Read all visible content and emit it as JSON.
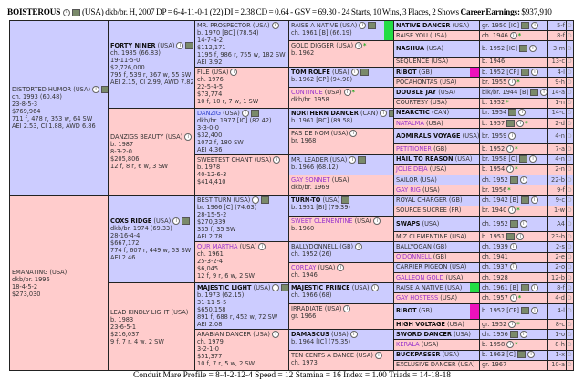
{
  "header": {
    "horse_name": "BOISTEROUS",
    "details": "(USA) dkb/br. H, 2007 DP = 6-4-11-0-1 (22) DI = 2.38   CD = 0.64 - GSV = 69.30 - 24 Starts, 10 Wins, 3 Places, 2 Shows",
    "earnings_label": "Career Earnings:",
    "earnings": "$937,910"
  },
  "colors": {
    "male_bg": "#ccccff",
    "female_bg": "#ffcccc",
    "swatch_green": "#22dd44",
    "swatch_magenta": "#ee11bb"
  },
  "gen1": [
    {
      "name": "DISTORTED HUMOR",
      "country": "(USA)",
      "sex": "m",
      "style": "",
      "icons": [
        "info",
        "book"
      ],
      "lines": [
        "ch. 1993 (60.48)",
        "23-8-5-3",
        "$769,964",
        "711 f, 478 r, 353 w, 64 SW",
        "AEI 2.53, CI 1.88, AWD 6.86"
      ]
    },
    {
      "name": "EMANATING",
      "country": "(USA)",
      "sex": "f",
      "style": "",
      "icons": [],
      "lines": [
        "dkb/br. 1996",
        "18-4-5-2",
        "$273,030"
      ]
    }
  ],
  "gen2": [
    {
      "name": "FORTY NINER",
      "country": "(USA)",
      "sex": "m",
      "style": "bold",
      "icons": [
        "info",
        "book"
      ],
      "lines": [
        "ch. 1985 (66.83)",
        "19-11-5-0",
        "$2,726,000",
        "795 f, 539 r, 367 w, 55 SW",
        "AEI 2.15, CI 2.99, AWD 7.82"
      ]
    },
    {
      "name": "DANZIGS BEAUTY",
      "country": "(USA)",
      "sex": "f",
      "style": "",
      "icons": [
        "info"
      ],
      "lines": [
        "b. 1987",
        "8-3-2-0",
        "$205,806",
        "12 f, 8 r, 6 w, 3 SW"
      ]
    },
    {
      "name": "COXS RIDGE",
      "country": "(USA)",
      "sex": "m",
      "style": "bold",
      "icons": [
        "info",
        "book"
      ],
      "lines": [
        "dkb/br. 1974 (69.33)",
        "28-16-4-4",
        "$667,172",
        "774 f, 607 r, 449 w, 53 SW",
        "AEI 2.46"
      ]
    },
    {
      "name": "LEAD KINDLY LIGHT",
      "country": "(USA)",
      "sex": "f",
      "style": "",
      "icons": [],
      "lines": [
        "b. 1983",
        "23-6-5-1",
        "$216,037",
        "9 f, 7 r, 4 w, 2 SW"
      ]
    }
  ],
  "gen3": [
    {
      "name": "MR. PROSPECTOR",
      "country": "(USA)",
      "sex": "m",
      "style": "",
      "icons": [
        "info"
      ],
      "lines": [
        "b. 1970 [BC] (78.54)",
        "14-7-4-2",
        "$112,171",
        "1195 f, 986 r, 755 w, 182 SW",
        "AEI 3.92"
      ]
    },
    {
      "name": "FILE",
      "country": "(USA)",
      "sex": "f",
      "style": "",
      "icons": [
        "info"
      ],
      "lines": [
        "ch. 1976",
        "22-5-4-5",
        "$73,774",
        "10 f, 10 r, 7 w, 1 SW"
      ]
    },
    {
      "name": "DANZIG",
      "country": "(USA)",
      "sex": "m",
      "style": "blue",
      "icons": [
        "info",
        "book"
      ],
      "lines": [
        "dkb/br. 1977 [IC] (82.42)",
        "3-3-0-0",
        "$32,400",
        "1072 f, 180 SW",
        "AEI 4.36"
      ]
    },
    {
      "name": "SWEETEST CHANT",
      "country": "(USA)",
      "sex": "f",
      "style": "",
      "icons": [
        "info"
      ],
      "lines": [
        "b. 1978",
        "40-12-6-3",
        "$414,410"
      ]
    },
    {
      "name": "BEST TURN",
      "country": "(USA)",
      "sex": "m",
      "style": "",
      "icons": [
        "info",
        "book"
      ],
      "lines": [
        "br. 1966 [C] (74.63)",
        "28-15-5-2",
        "$270,339",
        "335 f, 35 SW",
        "AEI 2.78"
      ]
    },
    {
      "name": "OUR MARTHA",
      "country": "(USA)",
      "sex": "f",
      "style": "purple",
      "icons": [
        "info"
      ],
      "lines": [
        "ch. 1961",
        "25-3-2-4",
        "$6,045",
        "12 f, 9 r, 6 w, 2 SW"
      ]
    },
    {
      "name": "MAJESTIC LIGHT",
      "country": "(USA)",
      "sex": "m",
      "style": "bold",
      "icons": [
        "info",
        "book"
      ],
      "lines": [
        "b. 1973 (62.15)",
        "31-11-5-5",
        "$650,158",
        "891 f, 688 r, 452 w, 72 SW",
        "AEI 2.08"
      ]
    },
    {
      "name": "ARABIAN DANCER",
      "country": "(USA)",
      "sex": "f",
      "style": "",
      "icons": [
        "info"
      ],
      "lines": [
        "ch. 1979",
        "3-2-1-0",
        "$51,377",
        "10 f, 7 r, 5 w, 2 SW"
      ]
    }
  ],
  "gen4": [
    {
      "name": "RAISE A NATIVE",
      "country": "(USA)",
      "sex": "m",
      "style": "",
      "icons": [
        "info",
        "book"
      ],
      "swatch": "#22dd44",
      "lines": [
        "ch. 1961 [B] (66.19)"
      ]
    },
    {
      "name": "GOLD DIGGER",
      "country": "(USA)",
      "sex": "f",
      "style": "",
      "icons": [
        "info",
        "star"
      ],
      "lines": [
        "b. 1962"
      ]
    },
    {
      "name": "TOM ROLFE",
      "country": "(USA)",
      "sex": "m",
      "style": "bold",
      "icons": [
        "info",
        "book"
      ],
      "lines": [
        "b. 1962 [CP] (94.98)"
      ]
    },
    {
      "name": "CONTINUE",
      "country": "(USA)",
      "sex": "f",
      "style": "purple",
      "icons": [
        "info",
        "star"
      ],
      "lines": [
        "dkb/br. 1958"
      ]
    },
    {
      "name": "NORTHERN DANCER",
      "country": "(CAN)",
      "sex": "m",
      "style": "bold",
      "icons": [
        "info",
        "book"
      ],
      "lines": [
        "b. 1961 [BC] (89.58)"
      ]
    },
    {
      "name": "PAS DE NOM",
      "country": "(USA)",
      "sex": "f",
      "style": "",
      "icons": [
        "info"
      ],
      "lines": [
        "br. 1968"
      ]
    },
    {
      "name": "MR. LEADER",
      "country": "(USA)",
      "sex": "m",
      "style": "",
      "icons": [
        "info",
        "book"
      ],
      "lines": [
        "b. 1966 (68.12)"
      ]
    },
    {
      "name": "GAY SONNET",
      "country": "(USA)",
      "sex": "f",
      "style": "purple",
      "icons": [],
      "lines": [
        "dkb/br. 1969"
      ]
    },
    {
      "name": "TURN-TO",
      "country": "(USA)",
      "sex": "m",
      "style": "bold",
      "icons": [
        "book"
      ],
      "lines": [
        "b. 1951 [BI] (79.39)"
      ]
    },
    {
      "name": "SWEET CLEMENTINE",
      "country": "(USA)",
      "sex": "f",
      "style": "purple",
      "icons": [
        "info"
      ],
      "lines": [
        "b. 1960"
      ]
    },
    {
      "name": "BALLYDONNELL",
      "country": "(GB)",
      "sex": "m",
      "style": "",
      "icons": [
        "info"
      ],
      "lines": [
        "ch. 1952 (26)"
      ]
    },
    {
      "name": "CORDAY",
      "country": "(USA)",
      "sex": "f",
      "style": "purple",
      "icons": [
        "info"
      ],
      "lines": [
        "ch. 1946"
      ]
    },
    {
      "name": "MAJESTIC PRINCE",
      "country": "(USA)",
      "sex": "m",
      "style": "bold",
      "icons": [
        "info"
      ],
      "lines": [
        "ch. 1966 (68)"
      ]
    },
    {
      "name": "IRRADIATE",
      "country": "(USA)",
      "sex": "f",
      "style": "",
      "icons": [
        "info"
      ],
      "lines": [
        "gr. 1966"
      ]
    },
    {
      "name": "DAMASCUS",
      "country": "(USA)",
      "sex": "m",
      "style": "bold",
      "icons": [
        "info"
      ],
      "lines": [
        "b. 1964 [IC] (75.35)"
      ]
    },
    {
      "name": "TEN CENTS A DANCE",
      "country": "(USA)",
      "sex": "f",
      "style": "",
      "icons": [
        "info"
      ],
      "lines": [
        "ch. 1973"
      ]
    }
  ],
  "gen5": [
    {
      "name": "NATIVE DANCER",
      "country": "(USA)",
      "sex": "m",
      "style": "bold",
      "info": "gr. 1950 [IC]",
      "icons": [
        "book",
        "info"
      ],
      "family": "5-f",
      "dosage": "D"
    },
    {
      "name": "RAISE YOU",
      "country": "(USA)",
      "sex": "f",
      "style": "",
      "info": "ch. 1946",
      "icons": [
        "info",
        "star"
      ],
      "family": "8-f",
      "dosage": "D"
    },
    {
      "name": "NASHUA",
      "country": "(USA)",
      "sex": "m",
      "style": "bold",
      "info": "b. 1952 [IC]",
      "icons": [
        "book",
        "info"
      ],
      "family": "3-m",
      "dosage": "D"
    },
    {
      "name": "SEQUENCE",
      "country": "(USA)",
      "sex": "f",
      "style": "",
      "info": "b. 1946",
      "icons": [],
      "family": "13-c",
      "dosage": "D"
    },
    {
      "name": "RIBOT",
      "country": "(GB)",
      "sex": "m",
      "style": "bold",
      "swatch": "#ee11bb",
      "info": "b. 1952 [CP]",
      "icons": [
        "book",
        "info"
      ],
      "family": "4-l",
      "dosage": "D"
    },
    {
      "name": "POCAHONTAS",
      "country": "(USA)",
      "sex": "f",
      "style": "",
      "info": "br. 1955",
      "icons": [
        "info",
        "star"
      ],
      "family": "9-h",
      "dosage": "D"
    },
    {
      "name": "DOUBLE JAY",
      "country": "(USA)",
      "sex": "m",
      "style": "bold",
      "info": "blk/br. 1944 [B]",
      "icons": [
        "book",
        "info"
      ],
      "family": "14-a",
      "dosage": "D"
    },
    {
      "name": "COURTESY",
      "country": "(USA)",
      "sex": "f",
      "style": "",
      "info": "b. 1952",
      "icons": [
        "star"
      ],
      "family": "1-n",
      "dosage": "D"
    },
    {
      "name": "NEARCTIC",
      "country": "(CAN)",
      "sex": "m",
      "style": "bold",
      "info": "br. 1954",
      "icons": [
        "book",
        "info"
      ],
      "family": "14-c",
      "dosage": "D"
    },
    {
      "name": "NATALMA",
      "country": "(USA)",
      "sex": "f",
      "style": "purple",
      "info": "b. 1957",
      "icons": [
        "book",
        "info",
        "star"
      ],
      "family": "2-d",
      "dosage": "D"
    },
    {
      "name": "ADMIRALS VOYAGE",
      "country": "(USA)",
      "sex": "m",
      "style": "bold",
      "info": "br. 1959",
      "icons": [
        "info"
      ],
      "family": "4-n",
      "dosage": "D"
    },
    {
      "name": "PETITIONER",
      "country": "(GB)",
      "sex": "f",
      "style": "purple",
      "info": "b. 1952",
      "icons": [
        "info",
        "star"
      ],
      "family": "7-a",
      "dosage": "D"
    },
    {
      "name": "HAIL TO REASON",
      "country": "(USA)",
      "sex": "m",
      "style": "bold",
      "info": "br. 1958 [C]",
      "icons": [
        "book",
        "info"
      ],
      "family": "4-n",
      "dosage": "D"
    },
    {
      "name": "JOLIE DEJA",
      "country": "(USA)",
      "sex": "f",
      "style": "purple",
      "info": "b. 1954",
      "icons": [
        "info",
        "star"
      ],
      "family": "2-n",
      "dosage": "D"
    },
    {
      "name": "SAILOR",
      "country": "(USA)",
      "sex": "m",
      "style": "",
      "info": "ch. 1952",
      "icons": [
        "book",
        "info"
      ],
      "family": "22-b",
      "dosage": "D"
    },
    {
      "name": "GAY RIG",
      "country": "(USA)",
      "sex": "f",
      "style": "purple",
      "info": "br. 1956",
      "icons": [
        "star"
      ],
      "family": "9-f",
      "dosage": "D"
    },
    {
      "name": "ROYAL CHARGER",
      "country": "(GB)",
      "sex": "m",
      "style": "",
      "info": "ch. 1942 [B]",
      "icons": [
        "book",
        "info"
      ],
      "family": "9-c",
      "dosage": "D"
    },
    {
      "name": "SOURCE SUCREE",
      "country": "(FR)",
      "sex": "f",
      "style": "",
      "info": "br. 1940",
      "icons": [
        "info",
        "star"
      ],
      "family": "1-w",
      "dosage": "D"
    },
    {
      "name": "SWAPS",
      "country": "(USA)",
      "sex": "m",
      "style": "bold",
      "info": "ch. 1952",
      "icons": [
        "book",
        "info"
      ],
      "family": "A4",
      "dosage": "D"
    },
    {
      "name": "MIZ CLEMENTINE",
      "country": "(USA)",
      "sex": "f",
      "style": "",
      "info": "b. 1951",
      "icons": [
        "book",
        "info"
      ],
      "family": "23-b",
      "dosage": "D"
    },
    {
      "name": "BALLYOGAN",
      "country": "(GB)",
      "sex": "m",
      "style": "",
      "info": "ch. 1939",
      "icons": [
        "info"
      ],
      "family": "2-s",
      "dosage": "D"
    },
    {
      "name": "O'DONNELL",
      "country": "(GB)",
      "sex": "f",
      "style": "purple",
      "info": "ch. 1941",
      "icons": [],
      "family": "2-e",
      "dosage": "D"
    },
    {
      "name": "CARRIER PIGEON",
      "country": "(USA)",
      "sex": "m",
      "style": "",
      "info": "ch. 1937",
      "icons": [
        "info"
      ],
      "family": "2-o",
      "dosage": "D"
    },
    {
      "name": "GALLEON GOLD",
      "country": "(USA)",
      "sex": "f",
      "style": "purple",
      "info": "ch. 1928",
      "icons": [],
      "family": "12-b",
      "dosage": "D"
    },
    {
      "name": "RAISE A NATIVE",
      "country": "(USA)",
      "sex": "m",
      "style": "",
      "swatch": "#22dd44",
      "info": "ch. 1961 [B]",
      "icons": [
        "book",
        "info"
      ],
      "family": "8-f",
      "dosage": "D"
    },
    {
      "name": "GAY HOSTESS",
      "country": "(USA)",
      "sex": "f",
      "style": "purple",
      "info": "ch. 1957",
      "icons": [
        "info",
        "star"
      ],
      "family": "4-d",
      "dosage": "D"
    },
    {
      "name": "RIBOT",
      "country": "(GB)",
      "sex": "m",
      "style": "bold",
      "swatch": "#ee11bb",
      "info": "b. 1952 [CP]",
      "icons": [
        "book",
        "info"
      ],
      "family": "4-l",
      "dosage": "D"
    },
    {
      "name": "HIGH VOLTAGE",
      "country": "(USA)",
      "sex": "f",
      "style": "bold",
      "info": "gr. 1952",
      "icons": [
        "info",
        "star"
      ],
      "family": "8-c",
      "dosage": "D"
    },
    {
      "name": "SWORD DANCER",
      "country": "(USA)",
      "sex": "m",
      "style": "bold",
      "info": "ch. 1956",
      "icons": [
        "book",
        "info"
      ],
      "family": "1-o",
      "dosage": "D"
    },
    {
      "name": "KERALA",
      "country": "(USA)",
      "sex": "f",
      "style": "purple",
      "info": "b. 1958",
      "icons": [
        "info",
        "star"
      ],
      "family": "8-h",
      "dosage": "D"
    },
    {
      "name": "BUCKPASSER",
      "country": "(USA)",
      "sex": "m",
      "style": "bold",
      "info": "b. 1963 [C]",
      "icons": [
        "book",
        "info"
      ],
      "family": "1-x",
      "dosage": "D"
    },
    {
      "name": "EXCLUSIVE DANCER",
      "country": "(USA)",
      "sex": "f",
      "style": "",
      "info": "gr. 1967",
      "icons": [],
      "family": "10-a",
      "dosage": "D"
    }
  ],
  "footer": {
    "text": "Conduit Mare Profile = 8-4-2-12-4   Speed = 12   Stamina = 16   Index = 1.00   Triads = 14-18-18"
  }
}
